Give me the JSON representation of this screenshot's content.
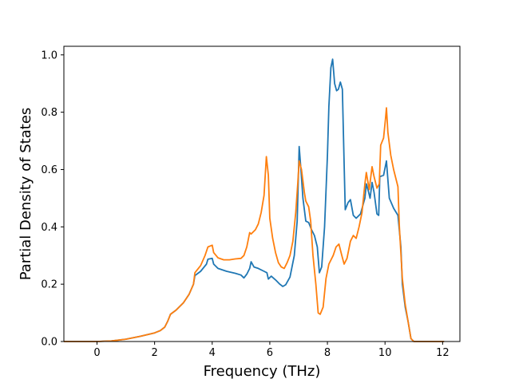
{
  "chart_data": {
    "type": "line",
    "title": "",
    "xlabel": "Frequency (THz)",
    "ylabel": "Partial Density of States",
    "xlim": [
      -1.15,
      12.6
    ],
    "ylim": [
      0.0,
      1.03
    ],
    "xticks": [
      0,
      2,
      4,
      6,
      8,
      10,
      12
    ],
    "xtick_labels": [
      "0",
      "2",
      "4",
      "6",
      "8",
      "10",
      "12"
    ],
    "yticks": [
      0.0,
      0.2,
      0.4,
      0.6,
      0.8,
      1.0
    ],
    "ytick_labels": [
      "0.0",
      "0.2",
      "0.4",
      "0.6",
      "0.8",
      "1.0"
    ],
    "grid": false,
    "legend": "none",
    "series": [
      {
        "color": "#1f77b4",
        "points": [
          [
            -1.15,
            0.0
          ],
          [
            0.0,
            0.0
          ],
          [
            0.5,
            0.002
          ],
          [
            1.0,
            0.008
          ],
          [
            1.5,
            0.018
          ],
          [
            2.0,
            0.03
          ],
          [
            2.2,
            0.038
          ],
          [
            2.35,
            0.05
          ],
          [
            2.45,
            0.07
          ],
          [
            2.55,
            0.095
          ],
          [
            2.75,
            0.11
          ],
          [
            3.0,
            0.135
          ],
          [
            3.2,
            0.165
          ],
          [
            3.35,
            0.2
          ],
          [
            3.4,
            0.23
          ],
          [
            3.6,
            0.245
          ],
          [
            3.8,
            0.27
          ],
          [
            3.85,
            0.287
          ],
          [
            4.0,
            0.29
          ],
          [
            4.05,
            0.27
          ],
          [
            4.2,
            0.255
          ],
          [
            4.5,
            0.245
          ],
          [
            4.8,
            0.238
          ],
          [
            5.0,
            0.232
          ],
          [
            5.1,
            0.222
          ],
          [
            5.2,
            0.235
          ],
          [
            5.3,
            0.255
          ],
          [
            5.35,
            0.278
          ],
          [
            5.45,
            0.26
          ],
          [
            5.6,
            0.255
          ],
          [
            5.8,
            0.245
          ],
          [
            5.9,
            0.24
          ],
          [
            5.95,
            0.218
          ],
          [
            6.05,
            0.228
          ],
          [
            6.2,
            0.215
          ],
          [
            6.35,
            0.2
          ],
          [
            6.45,
            0.192
          ],
          [
            6.55,
            0.198
          ],
          [
            6.7,
            0.225
          ],
          [
            6.85,
            0.3
          ],
          [
            6.9,
            0.36
          ],
          [
            6.95,
            0.42
          ],
          [
            7.02,
            0.68
          ],
          [
            7.08,
            0.6
          ],
          [
            7.15,
            0.5
          ],
          [
            7.25,
            0.42
          ],
          [
            7.35,
            0.415
          ],
          [
            7.45,
            0.39
          ],
          [
            7.55,
            0.37
          ],
          [
            7.65,
            0.33
          ],
          [
            7.72,
            0.24
          ],
          [
            7.8,
            0.26
          ],
          [
            7.9,
            0.4
          ],
          [
            8.0,
            0.65
          ],
          [
            8.05,
            0.82
          ],
          [
            8.12,
            0.955
          ],
          [
            8.18,
            0.985
          ],
          [
            8.25,
            0.9
          ],
          [
            8.32,
            0.875
          ],
          [
            8.38,
            0.88
          ],
          [
            8.45,
            0.905
          ],
          [
            8.52,
            0.88
          ],
          [
            8.58,
            0.62
          ],
          [
            8.62,
            0.46
          ],
          [
            8.72,
            0.485
          ],
          [
            8.8,
            0.495
          ],
          [
            8.9,
            0.44
          ],
          [
            9.0,
            0.43
          ],
          [
            9.15,
            0.445
          ],
          [
            9.3,
            0.5
          ],
          [
            9.35,
            0.55
          ],
          [
            9.42,
            0.525
          ],
          [
            9.48,
            0.5
          ],
          [
            9.55,
            0.555
          ],
          [
            9.62,
            0.52
          ],
          [
            9.72,
            0.445
          ],
          [
            9.78,
            0.44
          ],
          [
            9.82,
            0.575
          ],
          [
            9.95,
            0.58
          ],
          [
            10.05,
            0.63
          ],
          [
            10.15,
            0.5
          ],
          [
            10.3,
            0.465
          ],
          [
            10.45,
            0.44
          ],
          [
            10.55,
            0.33
          ],
          [
            10.6,
            0.2
          ],
          [
            10.7,
            0.12
          ],
          [
            10.8,
            0.07
          ],
          [
            10.9,
            0.01
          ],
          [
            11.0,
            0.0
          ],
          [
            12.05,
            0.0
          ]
        ]
      },
      {
        "color": "#ff7f0e",
        "points": [
          [
            -1.15,
            0.0
          ],
          [
            0.0,
            0.0
          ],
          [
            0.5,
            0.002
          ],
          [
            1.0,
            0.008
          ],
          [
            1.5,
            0.018
          ],
          [
            2.0,
            0.03
          ],
          [
            2.2,
            0.038
          ],
          [
            2.35,
            0.05
          ],
          [
            2.45,
            0.07
          ],
          [
            2.55,
            0.095
          ],
          [
            2.75,
            0.11
          ],
          [
            3.0,
            0.135
          ],
          [
            3.2,
            0.165
          ],
          [
            3.35,
            0.2
          ],
          [
            3.4,
            0.24
          ],
          [
            3.6,
            0.265
          ],
          [
            3.75,
            0.3
          ],
          [
            3.85,
            0.33
          ],
          [
            4.0,
            0.336
          ],
          [
            4.05,
            0.31
          ],
          [
            4.2,
            0.292
          ],
          [
            4.4,
            0.285
          ],
          [
            4.6,
            0.285
          ],
          [
            4.8,
            0.288
          ],
          [
            5.0,
            0.29
          ],
          [
            5.1,
            0.3
          ],
          [
            5.2,
            0.33
          ],
          [
            5.3,
            0.38
          ],
          [
            5.35,
            0.375
          ],
          [
            5.5,
            0.39
          ],
          [
            5.6,
            0.41
          ],
          [
            5.7,
            0.45
          ],
          [
            5.8,
            0.51
          ],
          [
            5.88,
            0.645
          ],
          [
            5.95,
            0.58
          ],
          [
            6.0,
            0.43
          ],
          [
            6.1,
            0.36
          ],
          [
            6.2,
            0.31
          ],
          [
            6.3,
            0.275
          ],
          [
            6.4,
            0.26
          ],
          [
            6.5,
            0.255
          ],
          [
            6.6,
            0.275
          ],
          [
            6.7,
            0.3
          ],
          [
            6.8,
            0.35
          ],
          [
            6.9,
            0.45
          ],
          [
            6.97,
            0.55
          ],
          [
            7.02,
            0.63
          ],
          [
            7.1,
            0.6
          ],
          [
            7.2,
            0.52
          ],
          [
            7.25,
            0.49
          ],
          [
            7.35,
            0.47
          ],
          [
            7.42,
            0.42
          ],
          [
            7.5,
            0.3
          ],
          [
            7.6,
            0.2
          ],
          [
            7.68,
            0.1
          ],
          [
            7.75,
            0.095
          ],
          [
            7.85,
            0.12
          ],
          [
            7.95,
            0.22
          ],
          [
            8.05,
            0.27
          ],
          [
            8.2,
            0.3
          ],
          [
            8.3,
            0.33
          ],
          [
            8.4,
            0.34
          ],
          [
            8.5,
            0.3
          ],
          [
            8.58,
            0.27
          ],
          [
            8.68,
            0.29
          ],
          [
            8.8,
            0.35
          ],
          [
            8.9,
            0.37
          ],
          [
            9.0,
            0.36
          ],
          [
            9.1,
            0.4
          ],
          [
            9.2,
            0.45
          ],
          [
            9.3,
            0.55
          ],
          [
            9.35,
            0.59
          ],
          [
            9.45,
            0.53
          ],
          [
            9.55,
            0.61
          ],
          [
            9.62,
            0.575
          ],
          [
            9.72,
            0.535
          ],
          [
            9.8,
            0.55
          ],
          [
            9.85,
            0.685
          ],
          [
            9.95,
            0.71
          ],
          [
            10.02,
            0.78
          ],
          [
            10.05,
            0.815
          ],
          [
            10.1,
            0.73
          ],
          [
            10.2,
            0.65
          ],
          [
            10.3,
            0.6
          ],
          [
            10.45,
            0.54
          ],
          [
            10.5,
            0.4
          ],
          [
            10.6,
            0.22
          ],
          [
            10.7,
            0.13
          ],
          [
            10.8,
            0.07
          ],
          [
            10.9,
            0.01
          ],
          [
            11.0,
            0.0
          ],
          [
            12.05,
            0.0
          ]
        ]
      }
    ]
  }
}
